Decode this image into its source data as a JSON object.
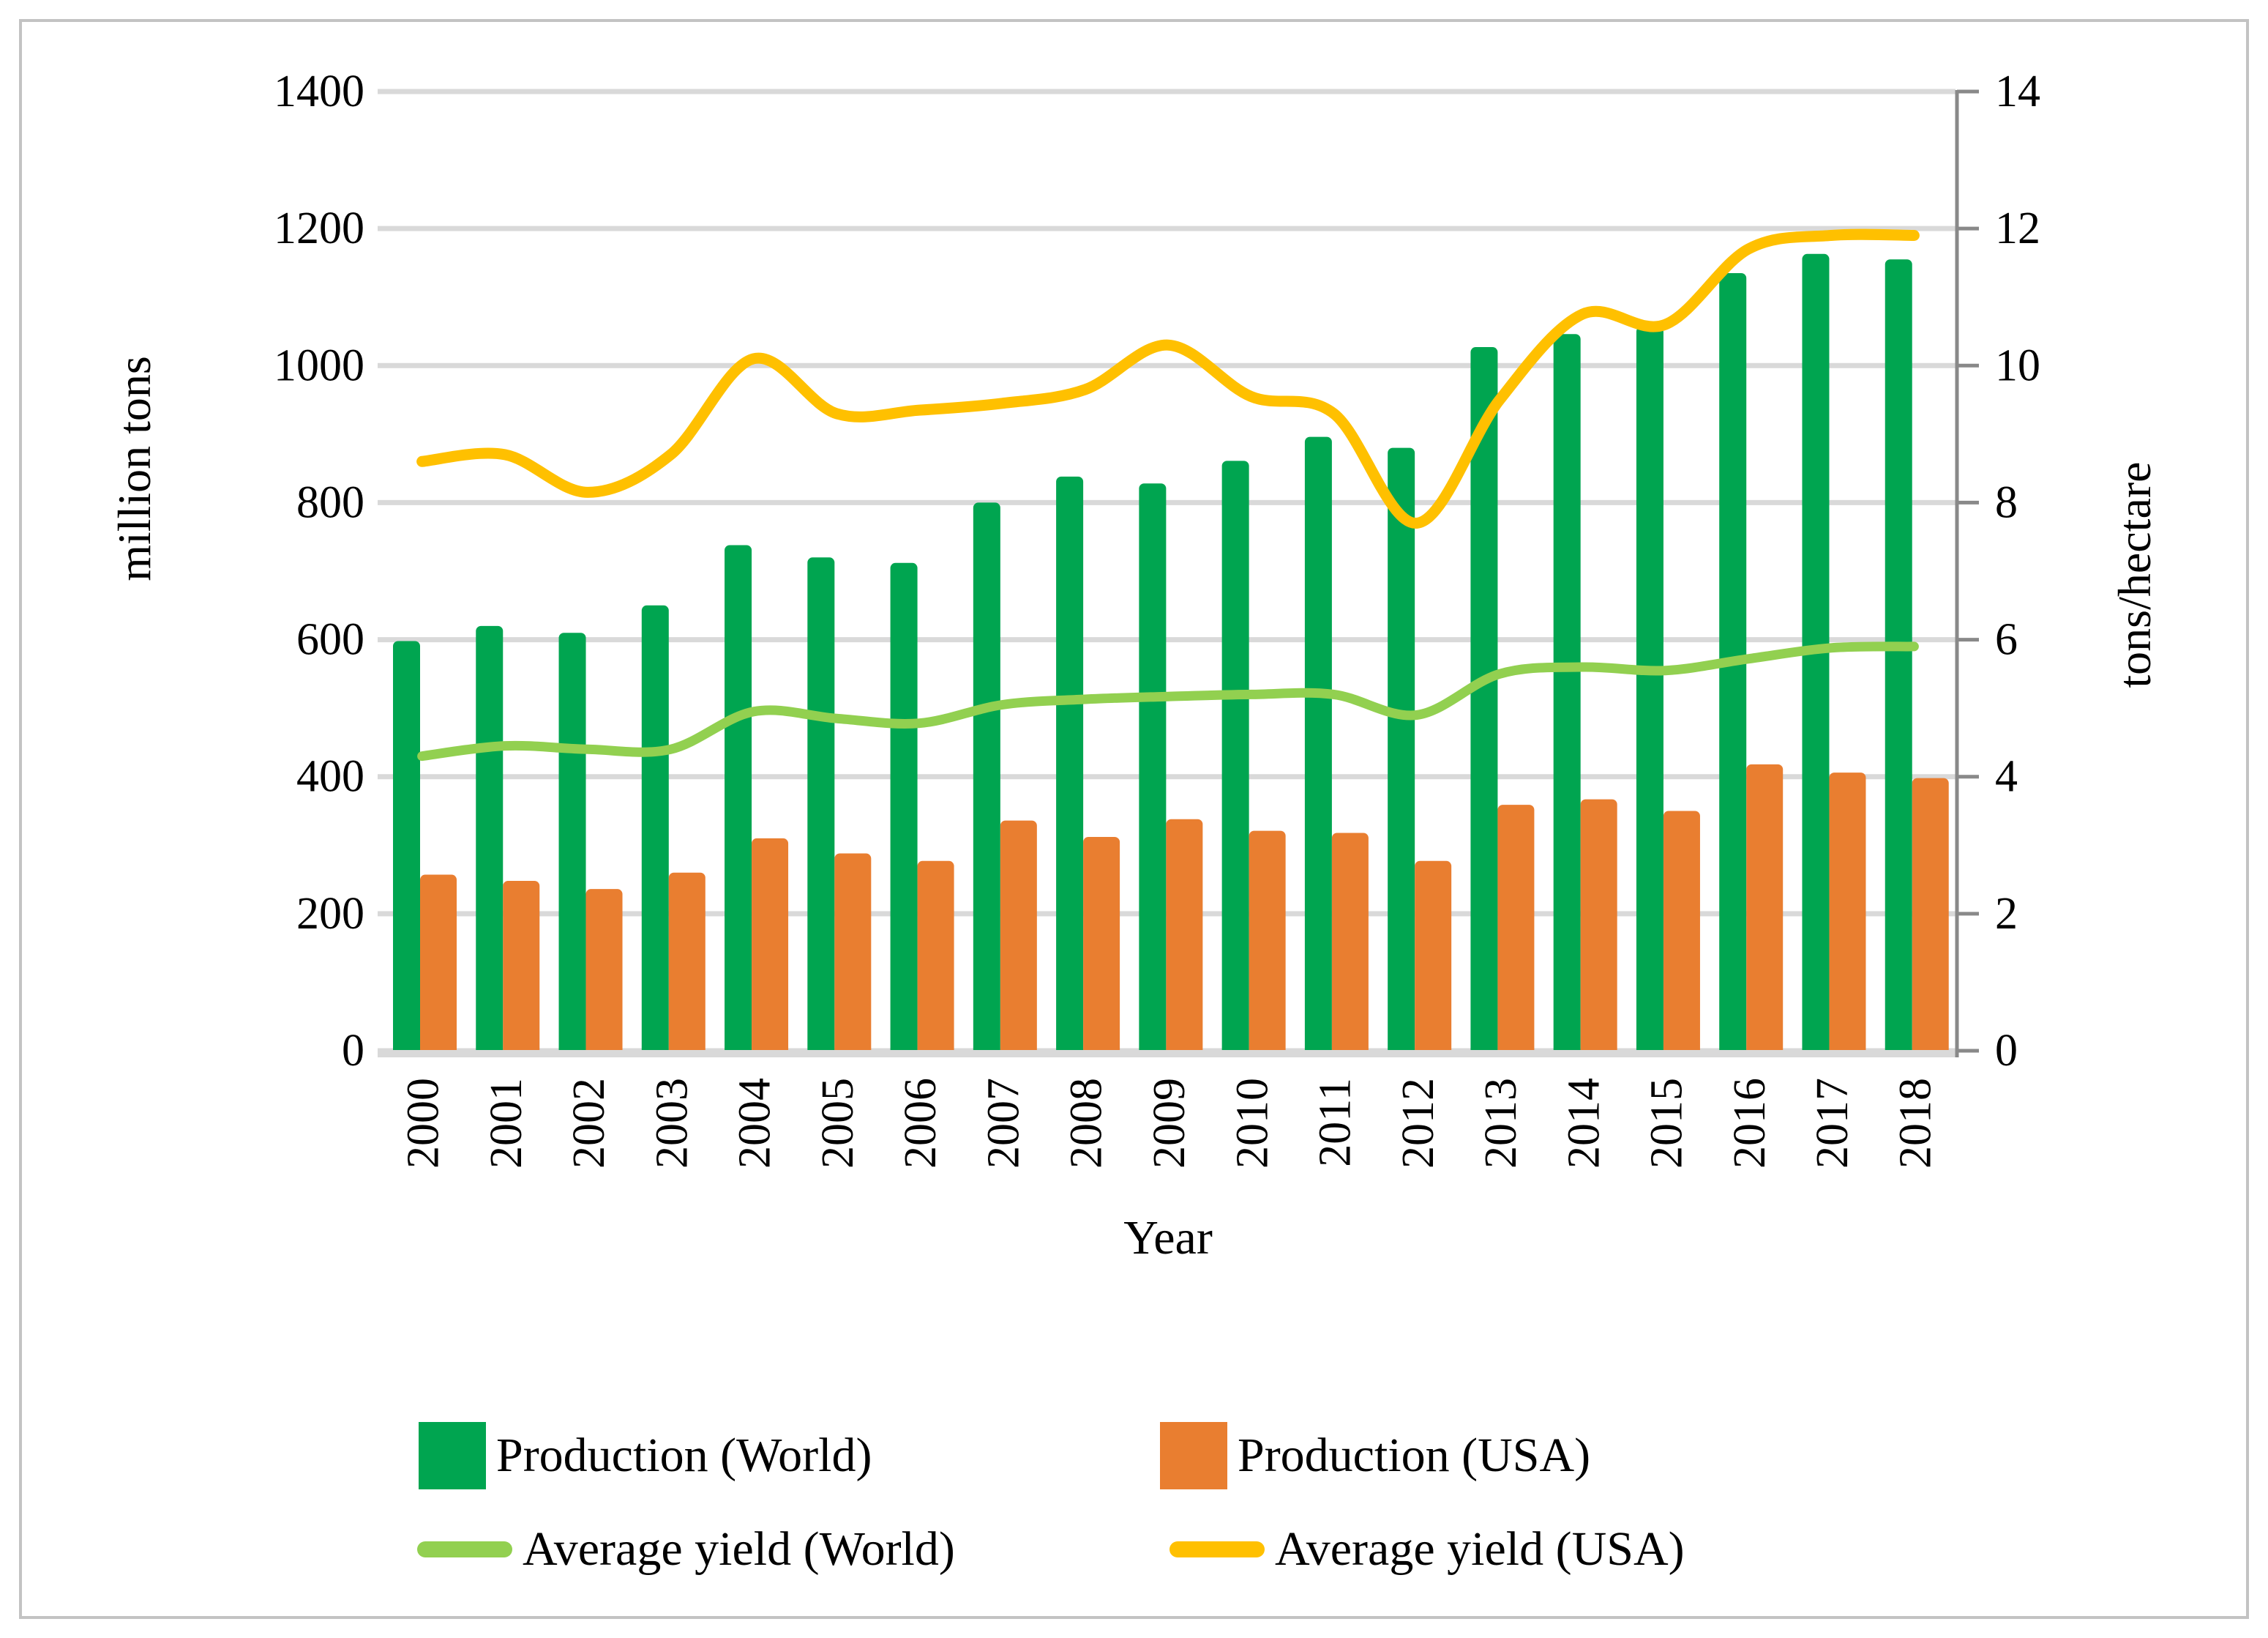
{
  "chart_data": {
    "type": "bar",
    "subtype": "combo-bar-line-dual-axis",
    "title": "",
    "categories": [
      "2000",
      "2001",
      "2002",
      "2003",
      "2004",
      "2005",
      "2006",
      "2007",
      "2008",
      "2009",
      "2010",
      "2011",
      "2012",
      "2013",
      "2014",
      "2015",
      "2016",
      "2017",
      "2018"
    ],
    "series": [
      {
        "name": "Production (World)",
        "type": "bar",
        "axis": "left",
        "color": "#00a550",
        "values": [
          598,
          620,
          610,
          650,
          738,
          720,
          712,
          800,
          838,
          828,
          861,
          896,
          880,
          1027,
          1046,
          1057,
          1135,
          1163,
          1155
        ]
      },
      {
        "name": "Production (USA)",
        "type": "bar",
        "axis": "left",
        "color": "#e97e30",
        "values": [
          257,
          248,
          236,
          260,
          310,
          288,
          277,
          336,
          312,
          338,
          321,
          318,
          277,
          359,
          367,
          350,
          418,
          406,
          398
        ]
      },
      {
        "name": "Average yield (World)",
        "type": "line",
        "axis": "right",
        "color": "#92d050",
        "values": [
          4.3,
          4.45,
          4.4,
          4.4,
          4.95,
          4.85,
          4.78,
          5.05,
          5.13,
          5.17,
          5.2,
          5.2,
          4.9,
          5.5,
          5.6,
          5.55,
          5.72,
          5.88,
          5.9
        ]
      },
      {
        "name": "Average yield (USA)",
        "type": "line",
        "axis": "right",
        "color": "#ffc000",
        "values": [
          8.6,
          8.7,
          8.15,
          8.7,
          10.1,
          9.3,
          9.35,
          9.45,
          9.65,
          10.3,
          9.55,
          9.3,
          7.7,
          9.5,
          10.75,
          10.6,
          11.7,
          11.9,
          11.9
        ]
      }
    ],
    "left_axis": {
      "label": "million tons",
      "min": 0,
      "max": 1400,
      "step": 200,
      "ticks": [
        "0",
        "200",
        "400",
        "600",
        "800",
        "1000",
        "1200",
        "1400"
      ]
    },
    "right_axis": {
      "label": "tons/hectare",
      "min": 0,
      "max": 14,
      "step": 2,
      "ticks": [
        "0",
        "2",
        "4",
        "6",
        "8",
        "10",
        "12",
        "14"
      ]
    },
    "x_axis": {
      "label": "Year"
    },
    "grid": true,
    "legend_position": "bottom"
  },
  "colors": {
    "gridline": "#d9d9d9",
    "baseline": "#d9d9d9",
    "right_axis_line": "#898989",
    "page_border": "#c3c3c3",
    "text": "#000000"
  }
}
